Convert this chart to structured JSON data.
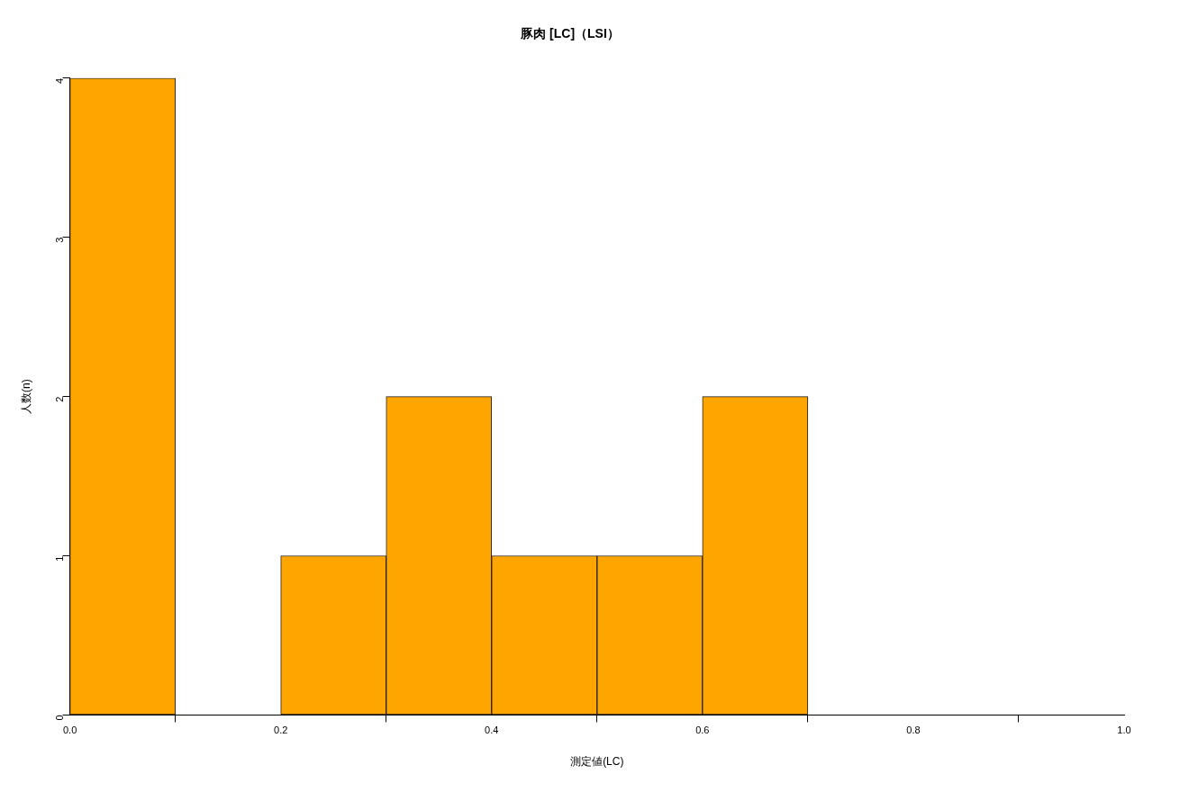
{
  "chart_data": {
    "type": "histogram",
    "title": "豚肉 [LC]（LSI）",
    "xlabel": "測定値(LC)",
    "ylabel": "人数(n)",
    "bins": [
      0,
      0.1,
      0.2,
      0.3,
      0.4,
      0.5,
      0.6,
      0.7
    ],
    "values": [
      4,
      0,
      1,
      2,
      1,
      1,
      2
    ],
    "color": "#ffa500",
    "xlim": [
      0,
      1
    ],
    "xticks": [
      {
        "value": 0,
        "label": "0.0"
      },
      0.2,
      0.4,
      0.6,
      0.8,
      {
        "value": 1,
        "label": "1.0"
      }
    ],
    "ylim": [
      0,
      4
    ],
    "yticks": [
      0,
      1,
      2,
      3,
      4
    ]
  }
}
